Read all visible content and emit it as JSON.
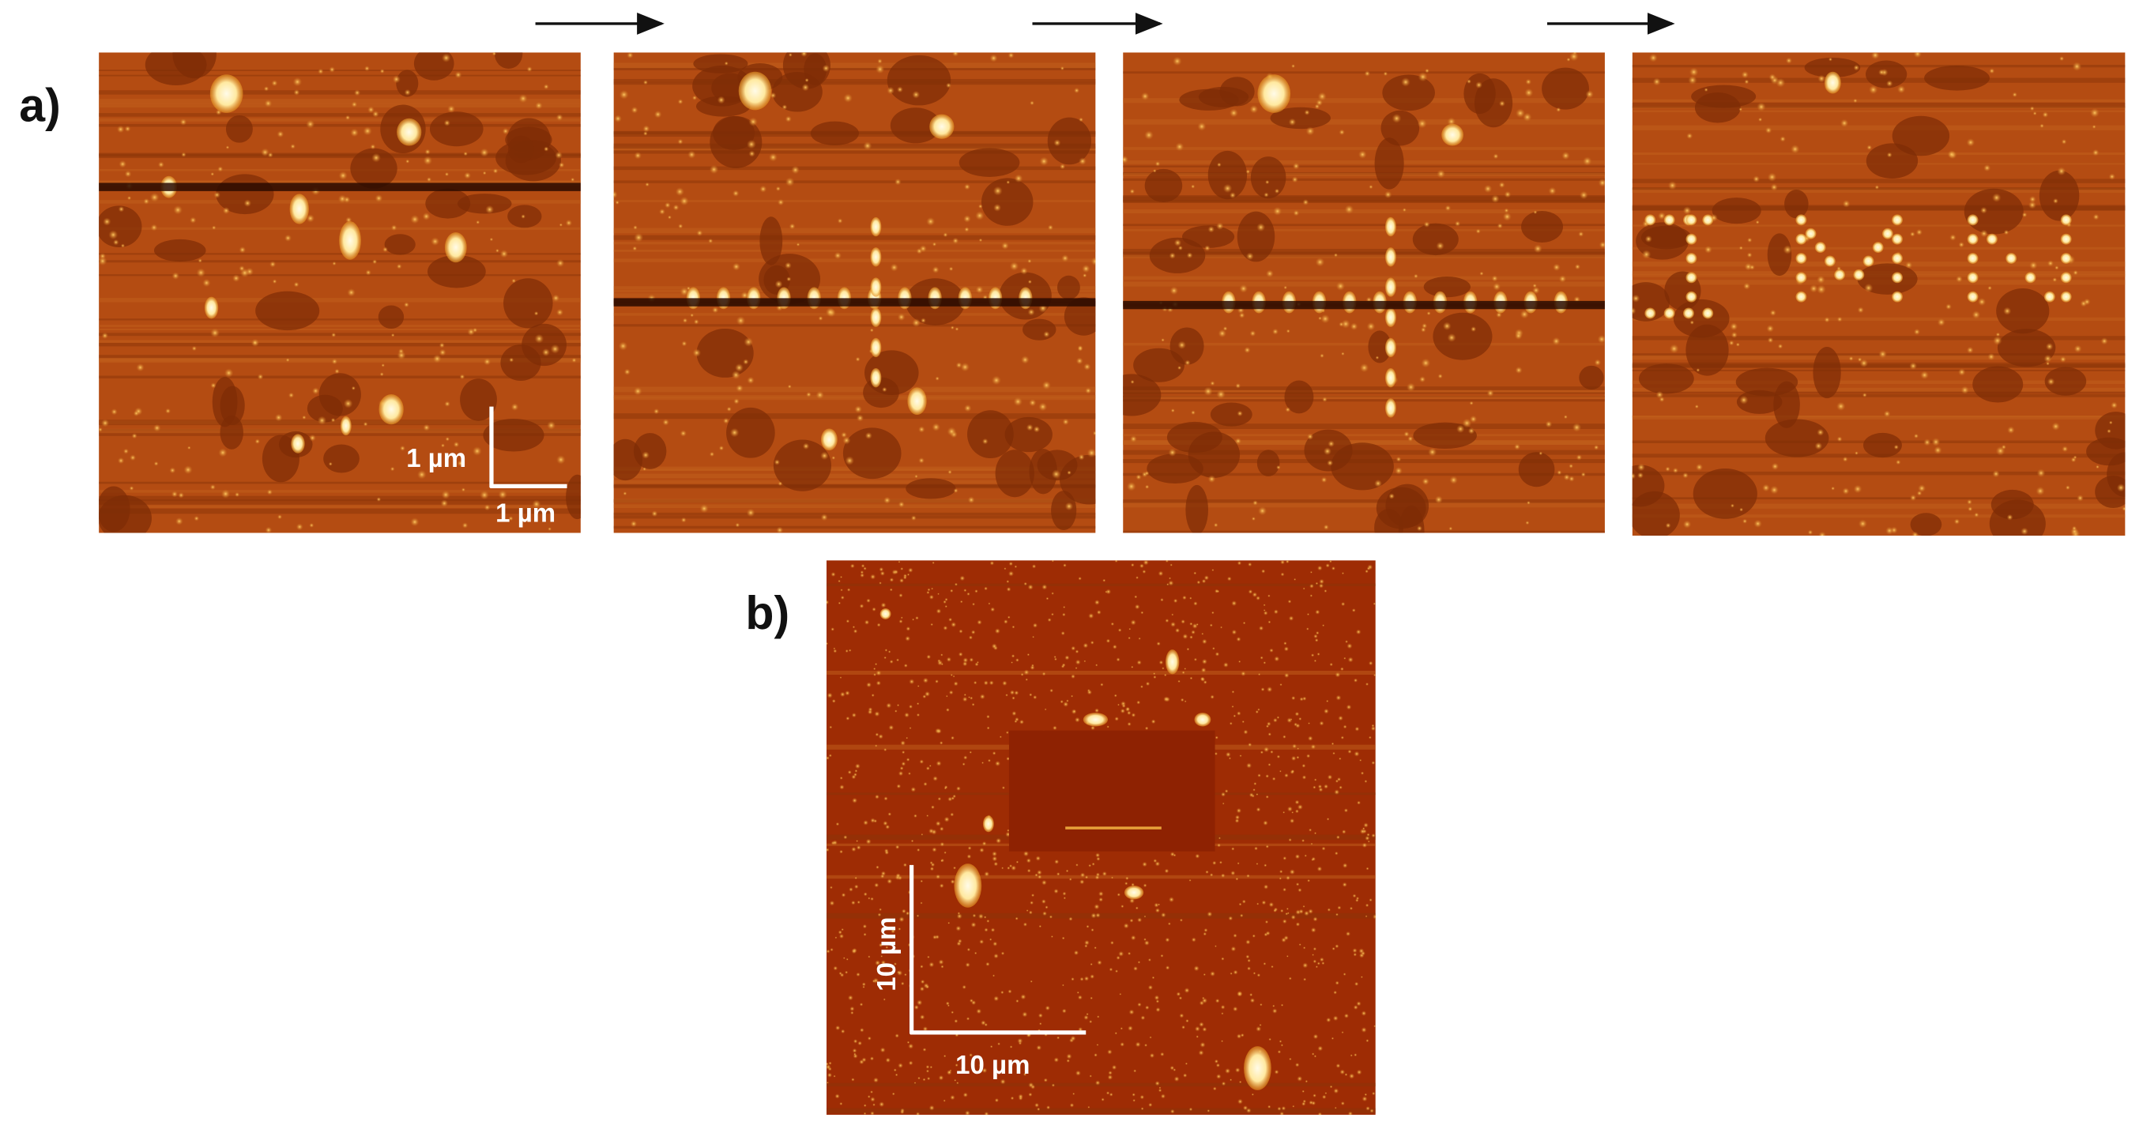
{
  "panel_a": {
    "label": "a)",
    "scale_bar_vertical": "1 µm",
    "scale_bar_horizontal": "1 µm"
  },
  "panel_b": {
    "label": "b)",
    "scale_bar_vertical": "10 µm",
    "scale_bar_horizontal": "10 µm"
  }
}
